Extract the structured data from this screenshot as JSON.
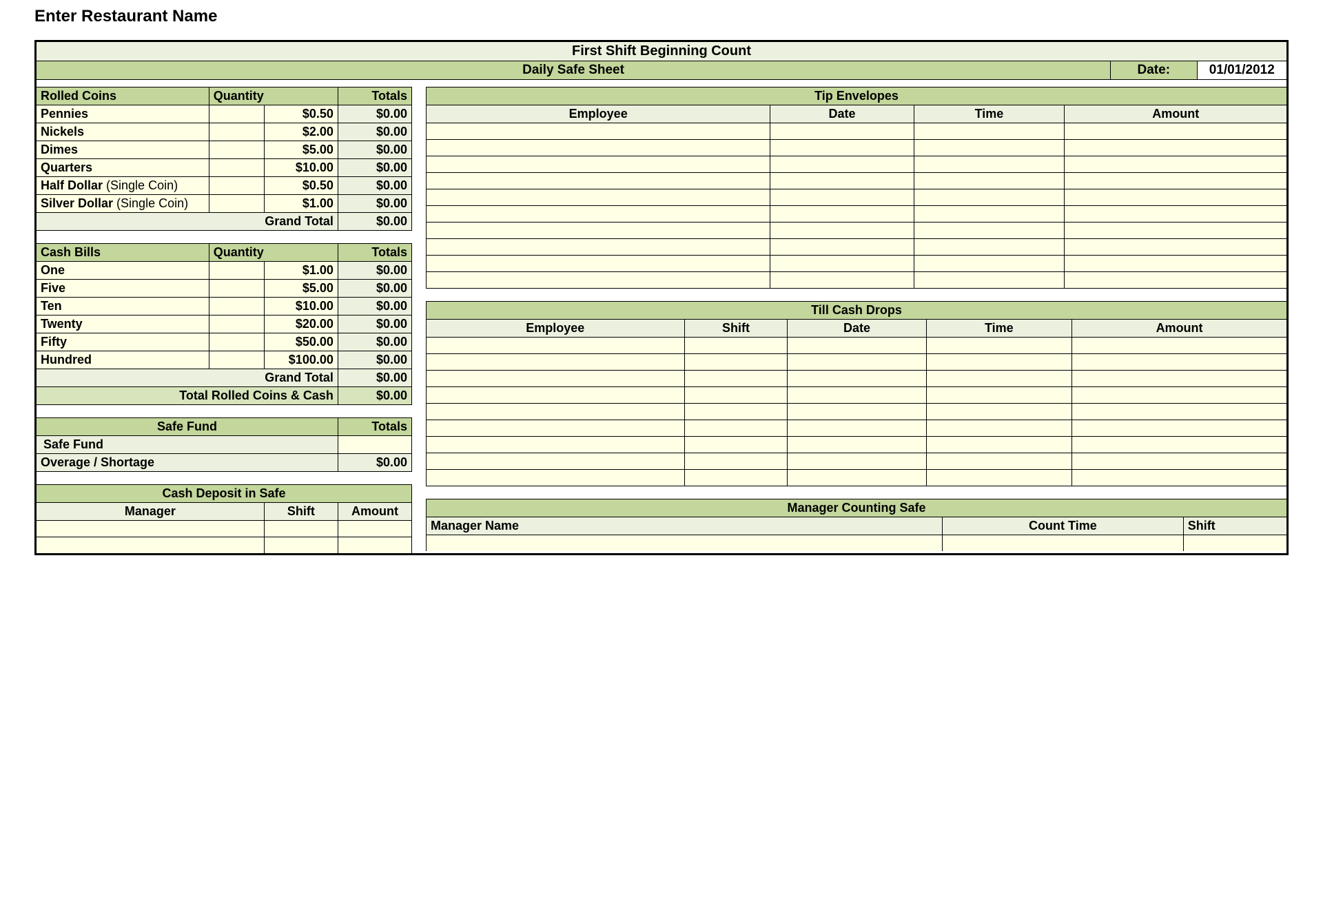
{
  "page_title": "Enter Restaurant Name",
  "main_title": "First Shift Beginning Count",
  "sheet_label": "Daily Safe Sheet",
  "date_label": "Date:",
  "date_value": "01/01/2012",
  "rolled_coins": {
    "header": "Rolled Coins",
    "qty_header": "Quantity",
    "totals_header": "Totals",
    "rows": [
      {
        "label": "Pennies",
        "sub": "",
        "value": "$0.50",
        "total": "$0.00"
      },
      {
        "label": "Nickels",
        "sub": "",
        "value": "$2.00",
        "total": "$0.00"
      },
      {
        "label": "Dimes",
        "sub": "",
        "value": "$5.00",
        "total": "$0.00"
      },
      {
        "label": "Quarters",
        "sub": "",
        "value": "$10.00",
        "total": "$0.00"
      },
      {
        "label": "Half Dollar",
        "sub": " (Single Coin)",
        "value": "$0.50",
        "total": "$0.00"
      },
      {
        "label": "Silver Dollar",
        "sub": " (Single Coin)",
        "value": "$1.00",
        "total": "$0.00"
      }
    ],
    "grand_total_label": "Grand Total",
    "grand_total_value": "$0.00"
  },
  "cash_bills": {
    "header": "Cash Bills",
    "qty_header": "Quantity",
    "totals_header": "Totals",
    "rows": [
      {
        "label": "One",
        "value": "$1.00",
        "total": "$0.00"
      },
      {
        "label": "Five",
        "value": "$5.00",
        "total": "$0.00"
      },
      {
        "label": "Ten",
        "value": "$10.00",
        "total": "$0.00"
      },
      {
        "label": "Twenty",
        "value": "$20.00",
        "total": "$0.00"
      },
      {
        "label": "Fifty",
        "value": "$50.00",
        "total": "$0.00"
      },
      {
        "label": "Hundred",
        "value": "$100.00",
        "total": "$0.00"
      }
    ],
    "grand_total_label": "Grand Total",
    "grand_total_value": "$0.00",
    "total_all_label": "Total Rolled Coins & Cash",
    "total_all_value": "$0.00"
  },
  "safe_fund": {
    "header": "Safe Fund",
    "totals_header": "Totals",
    "row1_label": "Safe Fund",
    "row2_label": "Overage / Shortage",
    "row2_value": "$0.00"
  },
  "cash_deposit": {
    "header": "Cash Deposit in Safe",
    "cols": [
      "Manager",
      "Shift",
      "Amount"
    ]
  },
  "tip_envelopes": {
    "header": "Tip Envelopes",
    "cols": [
      "Employee",
      "Date",
      "Time",
      "Amount"
    ]
  },
  "till_drops": {
    "header": "Till Cash Drops",
    "cols": [
      "Employee",
      "Shift",
      "Date",
      "Time",
      "Amount"
    ]
  },
  "manager_count": {
    "header": "Manager Counting Safe",
    "cols": [
      "Manager Name",
      "Count Time",
      "Shift"
    ]
  },
  "colors": {
    "header_light": "#ebf1de",
    "header_dark": "#d7e4bc",
    "header_mid": "#c3d69b",
    "cell_yellow": "#ffffe5",
    "border": "#000000"
  }
}
